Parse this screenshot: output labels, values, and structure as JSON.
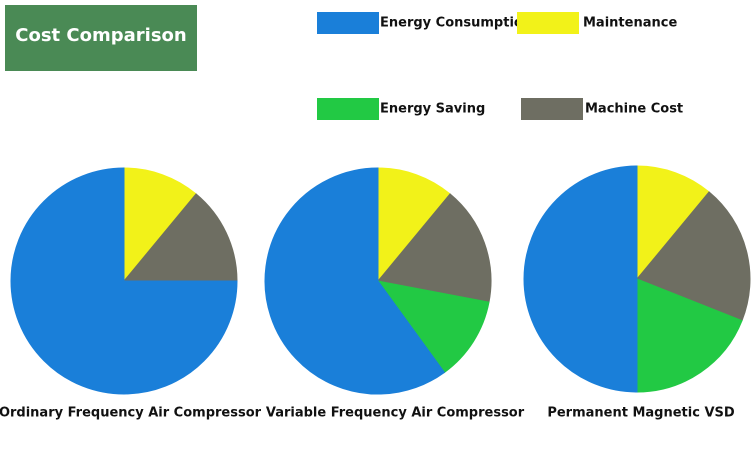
{
  "chart_data": {
    "type": "pie",
    "title": "Cost Comparison",
    "categories": [
      "Energy Consumption",
      "Maintenance",
      "Energy Saving",
      "Machine Cost"
    ],
    "colors": [
      "#1a7fd9",
      "#f2f219",
      "#22c944",
      "#6e6e62"
    ],
    "series": [
      {
        "name": "Ordinary Frequency Air Compressor",
        "values": [
          75,
          11,
          0,
          14
        ]
      },
      {
        "name": "Variable Frequency Air Compressor",
        "values": [
          60,
          11,
          12,
          17
        ]
      },
      {
        "name": "Permanent Magnetic VSD",
        "values": [
          50,
          11,
          19,
          20
        ]
      }
    ]
  }
}
